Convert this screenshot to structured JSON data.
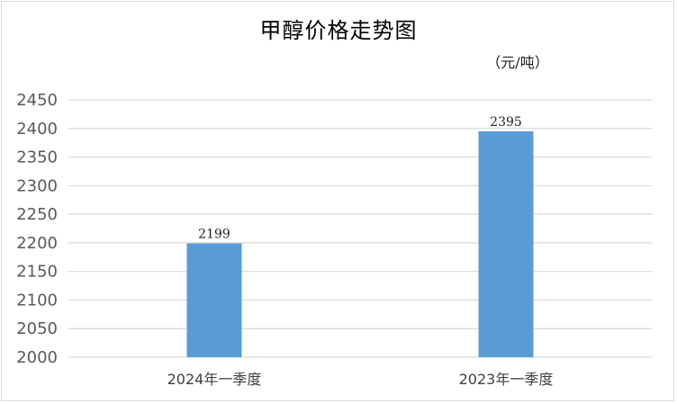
{
  "chart_data": {
    "type": "bar",
    "title": "甲醇价格走势图",
    "unit": "（元/吨）",
    "categories": [
      "2024年一季度",
      "2023年一季度"
    ],
    "values": [
      2199,
      2395
    ],
    "data_labels": [
      "2199",
      "2395"
    ],
    "ylim": [
      2000,
      2450
    ],
    "yticks": [
      2000,
      2050,
      2100,
      2150,
      2200,
      2250,
      2300,
      2350,
      2400,
      2450
    ],
    "xlabel": "",
    "ylabel": "",
    "grid": true,
    "legend": "none",
    "colors": {
      "bar": "#5b9bd5",
      "grid": "#d9d9d9",
      "tick_text": "#595959"
    }
  }
}
